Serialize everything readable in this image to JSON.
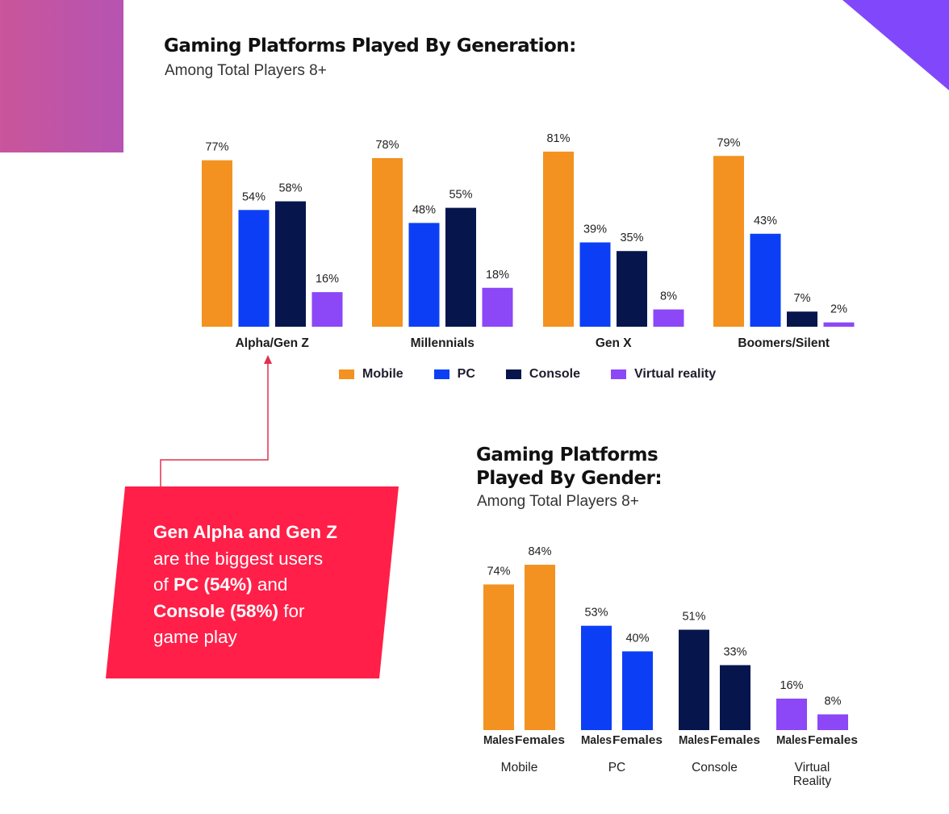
{
  "colors": {
    "mobile": "#f39220",
    "pc": "#0c3ff5",
    "console": "#07154d",
    "vr": "#8c47f7",
    "callout": "#ff1f48",
    "arrow": "#e0304f",
    "deco_left": "#c055a6",
    "deco_right": "#8148fb"
  },
  "chart_data": [
    {
      "type": "bar",
      "title": "Gaming Platforms Played By Generation:",
      "subtitle": "Among Total Players 8+",
      "categories": [
        "Alpha/Gen Z",
        "Millennials",
        "Gen X",
        "Boomers/Silent"
      ],
      "series": [
        {
          "name": "Mobile",
          "key": "mobile",
          "values": [
            77,
            78,
            81,
            79
          ]
        },
        {
          "name": "PC",
          "key": "pc",
          "values": [
            54,
            48,
            39,
            43
          ]
        },
        {
          "name": "Console",
          "key": "console",
          "values": [
            58,
            55,
            35,
            7
          ]
        },
        {
          "name": "Virtual reality",
          "key": "vr",
          "values": [
            16,
            18,
            8,
            2
          ]
        }
      ],
      "value_suffix": "%",
      "xlabel": "",
      "ylabel": "",
      "ylim": [
        0,
        100
      ],
      "grid": false,
      "legend": "bottom"
    },
    {
      "type": "bar",
      "title": "Gaming Platforms Played By Gender:",
      "title_lines": [
        "Gaming Platforms",
        "Played By Gender:"
      ],
      "subtitle": "Among Total Players 8+",
      "categories": [
        "Mobile",
        "PC",
        "Console",
        "Virtual Reality"
      ],
      "category_lines": [
        [
          "Mobile"
        ],
        [
          "PC"
        ],
        [
          "Console"
        ],
        [
          "Virtual",
          "Reality"
        ]
      ],
      "category_keys": [
        "mobile",
        "pc",
        "console",
        "vr"
      ],
      "subcategories": [
        "Males",
        "Females"
      ],
      "series": [
        {
          "name": "Males",
          "values": [
            74,
            53,
            51,
            16
          ]
        },
        {
          "name": "Females",
          "values": [
            84,
            40,
            33,
            8
          ]
        }
      ],
      "value_suffix": "%",
      "xlabel": "",
      "ylabel": "",
      "ylim": [
        0,
        100
      ],
      "grid": false,
      "legend": "none"
    }
  ],
  "legend": [
    {
      "label": "Mobile",
      "key": "mobile"
    },
    {
      "label": "PC",
      "key": "pc"
    },
    {
      "label": "Console",
      "key": "console"
    },
    {
      "label": "Virtual reality",
      "key": "vr"
    }
  ],
  "callout": {
    "line1_bold": "Gen Alpha and Gen Z",
    "line2": "are the biggest users",
    "line3_pre": "of ",
    "line3_bold": "PC (54%)",
    "line3_post": " and",
    "line4_bold": "Console (58%)",
    "line4_post": " for",
    "line5": "game play",
    "points_to": "Alpha/Gen Z"
  }
}
